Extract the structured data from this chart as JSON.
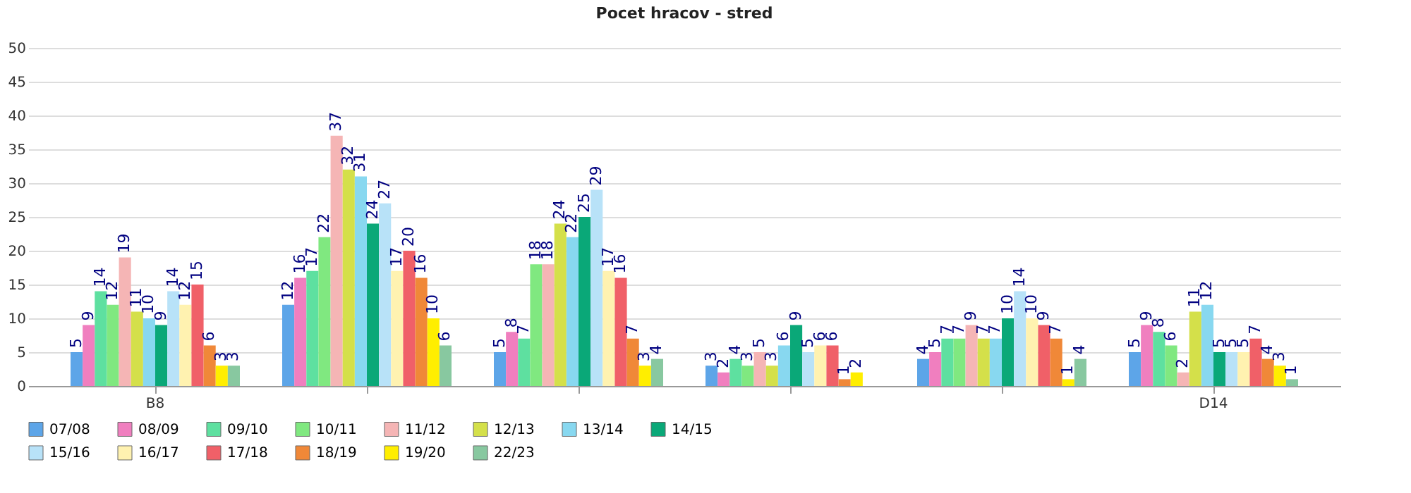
{
  "chart_data": {
    "type": "bar",
    "title": "Pocet hracov - stred",
    "categories": [
      "B8",
      null,
      null,
      null,
      null,
      "D14"
    ],
    "ylim": [
      0,
      50
    ],
    "yticks": [
      0,
      5,
      10,
      15,
      20,
      25,
      30,
      35,
      40,
      45,
      50
    ],
    "grid": "y",
    "legend": "bottom",
    "data_labels": true,
    "series": [
      {
        "name": "07/08",
        "color": "#5da5e8",
        "values": [
          5,
          12,
          5,
          3,
          4,
          5
        ]
      },
      {
        "name": "08/09",
        "color": "#f07fbf",
        "values": [
          9,
          16,
          8,
          2,
          5,
          9
        ]
      },
      {
        "name": "09/10",
        "color": "#5ee0a0",
        "values": [
          14,
          17,
          7,
          4,
          7,
          8
        ]
      },
      {
        "name": "10/11",
        "color": "#80e880",
        "values": [
          12,
          22,
          18,
          3,
          7,
          6
        ]
      },
      {
        "name": "11/12",
        "color": "#f5b5b5",
        "values": [
          19,
          37,
          18,
          5,
          9,
          2
        ]
      },
      {
        "name": "12/13",
        "color": "#d4e04a",
        "values": [
          11,
          32,
          24,
          3,
          7,
          11
        ]
      },
      {
        "name": "13/14",
        "color": "#88d8f0",
        "values": [
          10,
          31,
          22,
          6,
          7,
          12
        ]
      },
      {
        "name": "14/15",
        "color": "#0aa878",
        "values": [
          9,
          24,
          25,
          9,
          10,
          5
        ]
      },
      {
        "name": "15/16",
        "color": "#b8e2f8",
        "values": [
          14,
          27,
          29,
          5,
          14,
          5
        ]
      },
      {
        "name": "16/17",
        "color": "#fff2b0",
        "values": [
          12,
          17,
          17,
          6,
          10,
          5
        ]
      },
      {
        "name": "17/18",
        "color": "#f06068",
        "values": [
          15,
          20,
          16,
          6,
          9,
          7
        ]
      },
      {
        "name": "18/19",
        "color": "#f08838",
        "values": [
          6,
          16,
          7,
          1,
          7,
          4
        ]
      },
      {
        "name": "19/20",
        "color": "#ffee00",
        "values": [
          3,
          10,
          3,
          2,
          1,
          3
        ]
      },
      {
        "name": "22/23",
        "color": "#88c8a0",
        "values": [
          3,
          6,
          4,
          null,
          4,
          1
        ]
      }
    ]
  }
}
